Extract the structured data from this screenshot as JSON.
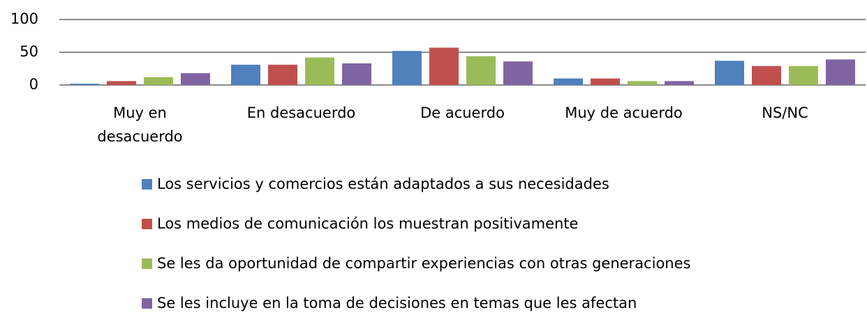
{
  "chart_data": {
    "type": "bar",
    "categories": [
      "Muy en desacuerdo",
      "En desacuerdo",
      "De acuerdo",
      "Muy de acuerdo",
      "NS/NC"
    ],
    "series": [
      {
        "name": "Los servicios y comercios están adaptados a sus necesidades",
        "color": "#4f81bd",
        "values": [
          2,
          31,
          52,
          10,
          37
        ]
      },
      {
        "name": "Los medios de comunicación los muestran positivamente",
        "color": "#c0504d",
        "values": [
          6,
          31,
          57,
          10,
          29
        ]
      },
      {
        "name": "Se les da oportunidad de compartir experiencias con otras generaciones",
        "color": "#9bbb59",
        "values": [
          12,
          42,
          44,
          6,
          29
        ]
      },
      {
        "name": "Se les incluye en la toma de decisiones en temas que les afectan",
        "color": "#8064a2",
        "values": [
          18,
          33,
          36,
          6,
          39
        ]
      }
    ],
    "ylim": [
      0,
      100
    ],
    "yticks": [
      0,
      50,
      100
    ],
    "grid": true
  }
}
